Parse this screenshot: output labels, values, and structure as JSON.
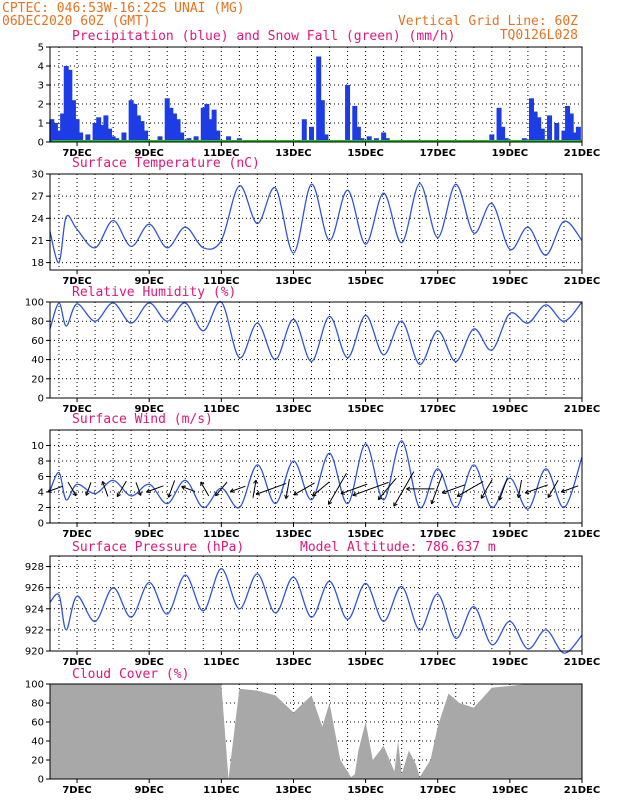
{
  "header": {
    "line1_left": "CPTEC:   046:53W-16:22S   UNAI (MG)",
    "line2_left": "06DEC2020 60Z (GMT)",
    "line2_right": "Vertical Grid Line: 60Z",
    "line3_right": "TQ0126L028"
  },
  "colors": {
    "precip": "#1e3ce6",
    "snow": "#22bb22",
    "line": "#2f55e0",
    "cloud": "#a8a8a8",
    "header": "#e8731e",
    "title": "#e0177e"
  },
  "x_axis": {
    "start_day": 6.25,
    "end_day": 21.0,
    "ticks": [
      {
        "day": 7,
        "label": "7DEC"
      },
      {
        "day": 9,
        "label": "9DEC"
      },
      {
        "day": 11,
        "label": "11DEC"
      },
      {
        "day": 13,
        "label": "13DEC"
      },
      {
        "day": 15,
        "label": "15DEC"
      },
      {
        "day": 17,
        "label": "17DEC"
      },
      {
        "day": 19,
        "label": "19DEC"
      },
      {
        "day": 21,
        "label": "21DEC"
      }
    ]
  },
  "chart_data": [
    {
      "id": "precip",
      "type": "bar",
      "title": "Precipitation (blue) and Snow Fall (green) (mm/h)",
      "ylim": [
        0,
        5
      ],
      "yticks": [
        0,
        1,
        2,
        3,
        4,
        5
      ],
      "series": [
        {
          "name": "Precipitation",
          "color_key": "precip",
          "x": [
            6.3,
            6.4,
            6.5,
            6.6,
            6.7,
            6.8,
            6.9,
            7.0,
            7.1,
            7.3,
            7.5,
            7.6,
            7.7,
            7.8,
            7.9,
            8.0,
            8.1,
            8.3,
            8.5,
            8.6,
            8.7,
            8.8,
            8.9,
            9.1,
            9.3,
            9.5,
            9.6,
            9.7,
            9.8,
            9.9,
            10.1,
            10.3,
            10.5,
            10.6,
            10.7,
            10.8,
            10.9,
            11.2,
            11.5,
            11.6,
            11.8,
            12.5,
            12.7,
            13.3,
            13.5,
            13.7,
            13.8,
            13.9,
            14.1,
            14.5,
            14.7,
            14.8,
            14.9,
            15.1,
            15.3,
            15.5,
            15.6,
            15.8,
            16.6,
            17.6,
            18.5,
            18.7,
            18.8,
            18.9,
            19.4,
            19.6,
            19.7,
            19.8,
            19.9,
            20.1,
            20.3,
            20.5,
            20.6,
            20.7,
            20.8,
            20.9
          ],
          "values": [
            1.2,
            1.0,
            0.6,
            1.5,
            4.0,
            3.8,
            2.2,
            1.2,
            0.5,
            0.4,
            1.0,
            1.3,
            0.9,
            1.4,
            0.7,
            0.3,
            0.2,
            0.5,
            2.2,
            2.0,
            1.4,
            1.1,
            0.6,
            0.1,
            0.3,
            2.3,
            1.8,
            1.5,
            1.2,
            0.5,
            0.2,
            0.3,
            1.8,
            2.0,
            1.2,
            1.7,
            0.6,
            0.3,
            0.2,
            0.1,
            0.1,
            0.1,
            0.1,
            1.2,
            0.8,
            4.5,
            2.2,
            0.4,
            0.1,
            3.0,
            1.9,
            0.8,
            0.2,
            0.3,
            0.2,
            0.5,
            0.2,
            0.1,
            0.1,
            0.1,
            0.4,
            1.8,
            0.8,
            0.2,
            0.2,
            2.3,
            1.6,
            1.3,
            0.7,
            1.4,
            1.0,
            0.6,
            1.9,
            1.5,
            0.5,
            0.8
          ]
        },
        {
          "name": "Snow Fall",
          "color_key": "snow",
          "x": [
            6.3,
            21.0
          ],
          "values": [
            0,
            0
          ]
        }
      ]
    },
    {
      "id": "temperature",
      "type": "line",
      "title": "Surface Temperature (nC)",
      "ylim": [
        17,
        30
      ],
      "yticks": [
        18,
        21,
        24,
        27,
        30
      ],
      "min_day": 6.25,
      "mean": 21.9,
      "amp": 3.2,
      "amp_growth": 0.18,
      "peak_hour": 18,
      "x": [
        6.25,
        6.5,
        6.7,
        7.0,
        7.5,
        8.0,
        8.5,
        9.0,
        9.5,
        10.0,
        10.5,
        11.0,
        11.5,
        12.0,
        12.5,
        13.0,
        13.5,
        14.0,
        14.5,
        15.0,
        15.5,
        16.0,
        16.5,
        17.0,
        17.5,
        18.0,
        18.5,
        19.0,
        19.5,
        20.0,
        20.5,
        21.0
      ],
      "values": [
        22.2,
        18.0,
        24.2,
        22.5,
        20.0,
        23.7,
        20.2,
        23.2,
        20.0,
        22.8,
        20.0,
        21.0,
        28.4,
        23.3,
        28.1,
        19.3,
        28.6,
        21.0,
        27.8,
        20.5,
        27.4,
        20.7,
        28.7,
        21.4,
        28.6,
        22.0,
        26.0,
        19.8,
        22.8,
        19.0,
        23.6,
        21.0
      ]
    },
    {
      "id": "humidity",
      "type": "line",
      "title": "Relative Humidity (%)",
      "ylim": [
        0,
        100
      ],
      "yticks": [
        0,
        20,
        40,
        60,
        80,
        100
      ],
      "x": [
        6.25,
        6.5,
        6.7,
        7.0,
        7.5,
        8.0,
        8.5,
        9.0,
        9.5,
        10.0,
        10.5,
        11.0,
        11.5,
        12.0,
        12.5,
        13.0,
        13.5,
        14.0,
        14.5,
        15.0,
        15.5,
        16.0,
        16.5,
        17.0,
        17.5,
        18.0,
        18.5,
        19.0,
        19.5,
        20.0,
        20.5,
        21.0
      ],
      "values": [
        72,
        99,
        75,
        98,
        80,
        99,
        78,
        99,
        80,
        99,
        70,
        100,
        42,
        78,
        40,
        82,
        38,
        85,
        42,
        86,
        45,
        80,
        35,
        70,
        38,
        72,
        50,
        88,
        78,
        97,
        80,
        100
      ]
    },
    {
      "id": "wind",
      "type": "line",
      "title": "Surface Wind (m/s)",
      "ylim": [
        0,
        12
      ],
      "yticks": [
        0,
        2,
        4,
        6,
        8,
        10
      ],
      "x": [
        6.25,
        6.5,
        6.7,
        7.0,
        7.5,
        8.0,
        8.5,
        9.0,
        9.5,
        10.0,
        10.5,
        11.0,
        11.5,
        12.0,
        12.5,
        13.0,
        13.5,
        14.0,
        14.5,
        15.0,
        15.5,
        16.0,
        16.5,
        17.0,
        17.5,
        18.0,
        18.5,
        19.0,
        19.5,
        20.0,
        20.5,
        21.0
      ],
      "values": [
        4.2,
        6.5,
        3.0,
        5.0,
        3.8,
        5.5,
        3.5,
        5.0,
        2.5,
        5.5,
        2.0,
        4.5,
        2.0,
        7.5,
        2.5,
        8.0,
        3.0,
        9.0,
        2.5,
        10.2,
        3.0,
        10.6,
        2.0,
        7.0,
        2.0,
        7.5,
        2.0,
        5.8,
        1.8,
        7.0,
        2.0,
        8.5
      ]
    },
    {
      "id": "pressure",
      "type": "line",
      "title": "Surface Pressure (hPa)",
      "annotation": "Model Altitude: 786.637 m",
      "ylim": [
        920,
        929
      ],
      "yticks": [
        920,
        922,
        924,
        926,
        928
      ],
      "x": [
        6.25,
        6.5,
        6.7,
        7.0,
        7.5,
        8.0,
        8.5,
        9.0,
        9.5,
        10.0,
        10.5,
        11.0,
        11.5,
        12.0,
        12.5,
        13.0,
        13.5,
        14.0,
        14.5,
        15.0,
        15.5,
        16.0,
        16.5,
        17.0,
        17.5,
        18.0,
        18.5,
        19.0,
        19.5,
        20.0,
        20.5,
        21.0
      ],
      "values": [
        924.6,
        925.3,
        922.0,
        925.2,
        922.8,
        926.0,
        923.2,
        926.5,
        923.5,
        927.2,
        923.8,
        927.8,
        924.0,
        927.3,
        923.6,
        927.0,
        923.2,
        926.6,
        923.0,
        926.4,
        922.8,
        926.1,
        922.0,
        925.4,
        921.2,
        924.2,
        920.6,
        922.8,
        920.2,
        922.0,
        919.8,
        921.5
      ]
    },
    {
      "id": "cloud",
      "type": "area",
      "title": "Cloud Cover (%)",
      "ylim": [
        0,
        100
      ],
      "yticks": [
        0,
        20,
        40,
        60,
        80,
        100
      ],
      "x": [
        6.25,
        11.0,
        11.2,
        11.5,
        12.0,
        12.5,
        13.0,
        13.5,
        13.8,
        14.0,
        14.3,
        14.6,
        14.7,
        14.8,
        15.0,
        15.2,
        15.5,
        15.8,
        15.9,
        16.0,
        16.2,
        16.4,
        16.5,
        16.8,
        17.0,
        17.3,
        17.6,
        18.0,
        18.5,
        19.0,
        19.5,
        20.0,
        21.0
      ],
      "values": [
        100,
        100,
        0,
        95,
        93,
        88,
        70,
        88,
        55,
        80,
        20,
        2,
        5,
        30,
        60,
        20,
        35,
        8,
        40,
        5,
        30,
        15,
        2,
        20,
        55,
        90,
        80,
        75,
        96,
        98,
        100,
        100,
        100
      ]
    }
  ]
}
